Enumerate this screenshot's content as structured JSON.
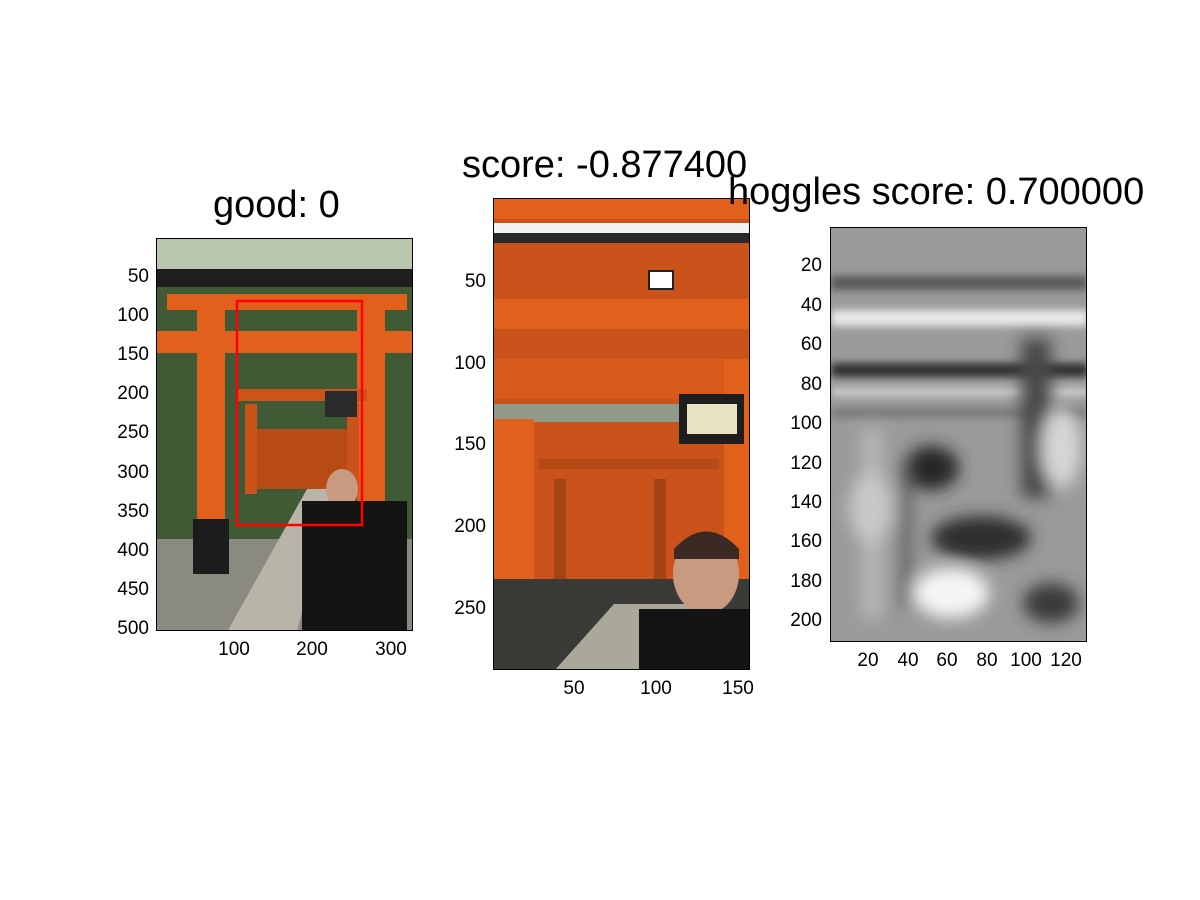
{
  "panels": [
    {
      "title": "good: 0",
      "yticks": [
        "50",
        "100",
        "150",
        "200",
        "250",
        "300",
        "350",
        "400",
        "450",
        "500"
      ],
      "xticks": [
        "100",
        "200",
        "300"
      ]
    },
    {
      "title": "score: -0.877400",
      "yticks": [
        "50",
        "100",
        "150",
        "200",
        "250"
      ],
      "xticks": [
        "50",
        "100",
        "150"
      ]
    },
    {
      "title": "hoggles score: 0.700000",
      "yticks": [
        "20",
        "40",
        "60",
        "80",
        "100",
        "120",
        "140",
        "160",
        "180",
        "200"
      ],
      "xticks": [
        "20",
        "40",
        "60",
        "80",
        "100",
        "120"
      ]
    }
  ],
  "colors": {
    "torii_orange": "#e0601c",
    "detection_box": "#ff0000",
    "foliage": "#3f5a35"
  }
}
